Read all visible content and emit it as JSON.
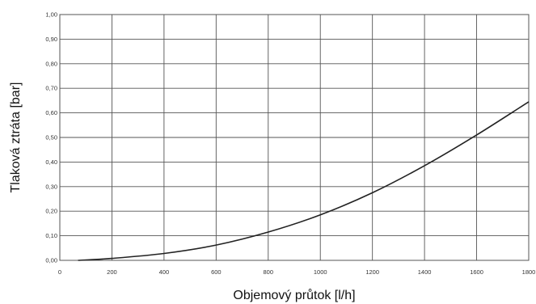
{
  "chart_data": {
    "type": "line",
    "title": "",
    "xlabel": "Objemový průtok [l/h]",
    "ylabel": "Tlaková ztráta [bar]",
    "xlim": [
      0,
      1800
    ],
    "ylim": [
      0,
      1.0
    ],
    "x_ticks": [
      0,
      200,
      400,
      600,
      800,
      1000,
      1200,
      1400,
      1600,
      1800
    ],
    "x_tick_labels": [
      "0",
      "200",
      "400",
      "600",
      "800",
      "1000",
      "1200",
      "1400",
      "1600",
      "1800"
    ],
    "y_ticks": [
      0,
      0.1,
      0.2,
      0.3,
      0.4,
      0.5,
      0.6,
      0.7,
      0.8,
      0.9,
      1.0
    ],
    "y_tick_labels": [
      "0,00",
      "0,10",
      "0,20",
      "0,30",
      "0,40",
      "0,50",
      "0,60",
      "0,70",
      "0,80",
      "0,90",
      "1,00"
    ],
    "grid": true,
    "legend": "none",
    "line_color": "#222222",
    "grid_color": "#555555",
    "series": [
      {
        "x": [
          70,
          200,
          400,
          600,
          800,
          1000,
          1200,
          1400,
          1600,
          1800
        ],
        "y": [
          0.0,
          0.008,
          0.028,
          0.062,
          0.115,
          0.185,
          0.275,
          0.385,
          0.51,
          0.645
        ]
      }
    ]
  }
}
